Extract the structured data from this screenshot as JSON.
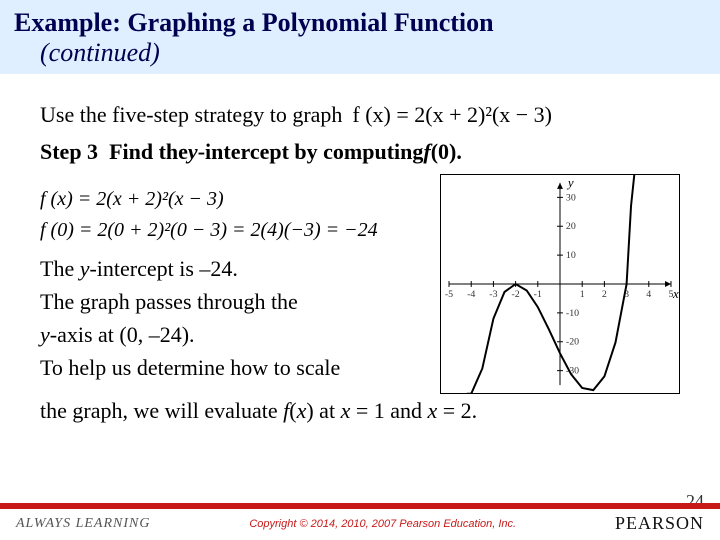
{
  "header": {
    "title": "Example:  Graphing a Polynomial Function",
    "subtitle": "(continued)"
  },
  "intro": "Use the five-step strategy to graph",
  "intro_eq": "f (x) = 2(x + 2)²(x − 3)",
  "stepLabel": "Step 3",
  "stepText": "Find the ",
  "stepText2": "-intercept by computing ",
  "stepVar1": "y",
  "stepVar2": "f",
  "stepText3": "(0).",
  "eq1": "f (x) = 2(x + 2)²(x − 3)",
  "eq2": "f (0) = 2(0 + 2)²(0 − 3) = 2(4)(−3) = −24",
  "line1a": "The ",
  "line1i": "y",
  "line1b": "-intercept is –24.",
  "line2": "The graph passes through the",
  "line3a": "y",
  "line3b": "-axis at (0, –24).",
  "line4": "To help us us determine how to scale",
  "line4fix": "To help us determine how to scale",
  "line5a": "the graph, we will evaluate ",
  "line5f": "f",
  "line5b": "(",
  "line5x": "x",
  "line5c": ") at ",
  "line5x2": "x",
  "line5d": " = 1 and ",
  "line5x3": "x",
  "line5e": " = 2.",
  "chart": {
    "type": "line",
    "xlim": [
      -5,
      5
    ],
    "ylim": [
      -35,
      35
    ],
    "xticks": [
      -5,
      -4,
      -3,
      -2,
      -1,
      1,
      2,
      3,
      4,
      5
    ],
    "yticks": [
      -30,
      -20,
      -10,
      10,
      20,
      30
    ],
    "points": [
      [
        -5,
        null
      ],
      [
        -4.2,
        -58
      ],
      [
        -4,
        -56
      ],
      [
        -3.5,
        -29.25
      ],
      [
        -3,
        -12
      ],
      [
        -2.5,
        -2.75
      ],
      [
        -2,
        0
      ],
      [
        -1.5,
        -2.25
      ],
      [
        -1,
        -8
      ],
      [
        -0.5,
        -15.75
      ],
      [
        0,
        -24
      ],
      [
        0.5,
        -31.25
      ],
      [
        1,
        -36
      ],
      [
        1.5,
        -36.75
      ],
      [
        2,
        -32
      ],
      [
        2.5,
        -20.25
      ],
      [
        3,
        0
      ],
      [
        3.2,
        27.04
      ],
      [
        3.35,
        38
      ]
    ],
    "stroke": "#000",
    "stroke_width": 2,
    "axis_color": "#000",
    "tick_fontsize": 10,
    "tick_color": "#333",
    "axis_labels": {
      "x": "x",
      "y": "y"
    }
  },
  "footer": {
    "always": "ALWAYS LEARNING",
    "copyright": "Copyright © 2014, 2010, 2007 Pearson Education, Inc.",
    "brand": "PEARSON",
    "page": "24"
  }
}
